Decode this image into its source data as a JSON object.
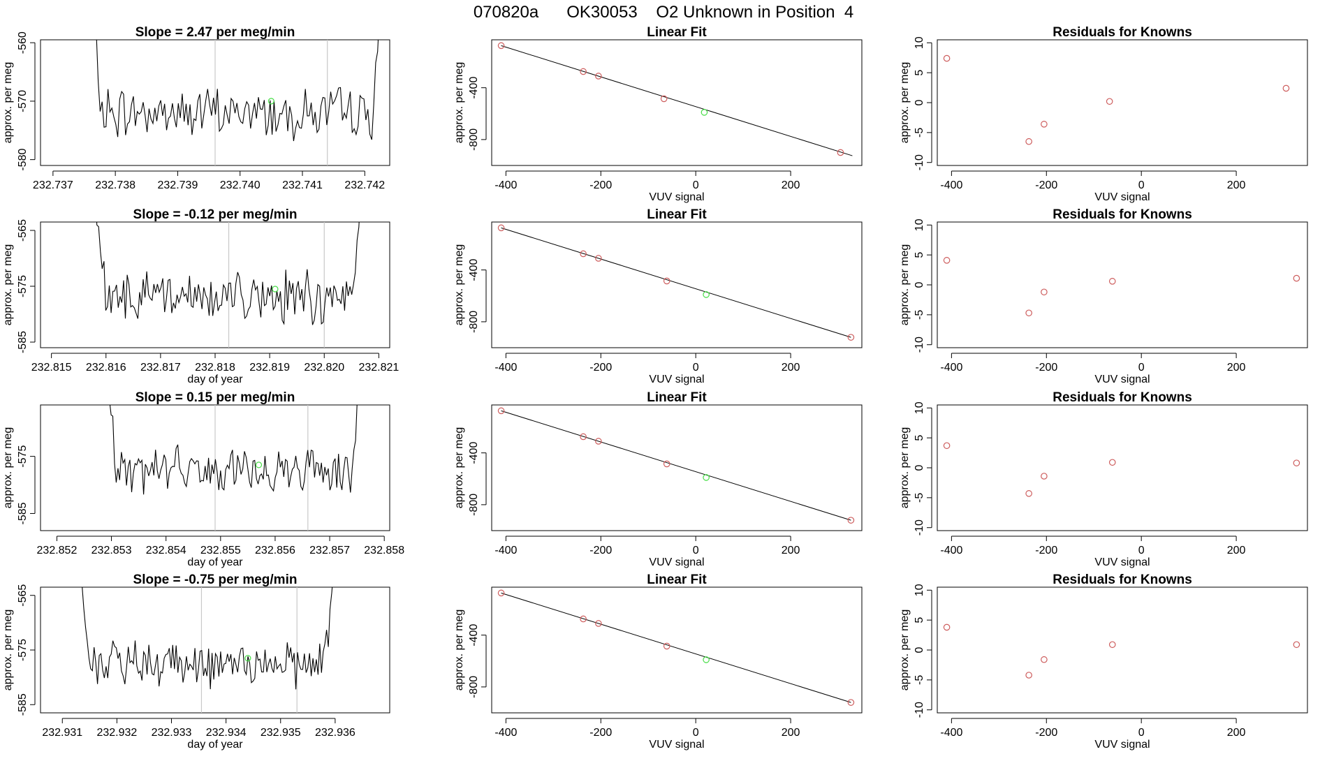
{
  "suptitle": "070820a      OK30053    O2 Unknown in Position  4",
  "colors": {
    "trace": "#000000",
    "known_point": "#cd5c5c",
    "unknown_point": "#44dd44",
    "vline": "#c8c8c8",
    "frame": "#000000"
  },
  "chart_data": [
    {
      "type": "line",
      "title": "Slope =  2.47  per meg/min",
      "xlabel": "",
      "ylabel": "approx. per meg",
      "xlim": [
        232.7368,
        232.7424
      ],
      "ylim": [
        -581,
        -559.5
      ],
      "xticks": [
        232.737,
        232.738,
        232.739,
        232.74,
        232.741,
        232.742
      ],
      "xtick_labels": [
        "232.737",
        "232.738",
        "232.739",
        "232.740",
        "232.741",
        "232.742"
      ],
      "yticks": [
        -560,
        -570,
        -580
      ],
      "ytick_labels": [
        "-560",
        "-570",
        "-580"
      ],
      "vlines": [
        232.7396,
        232.7414
      ],
      "series": [
        {
          "x_start": 232.7376,
          "x_end": 232.7423,
          "center": -572,
          "noise": 3.5
        }
      ],
      "marker": {
        "x": 232.7405,
        "y": -570
      }
    },
    {
      "type": "scatter",
      "title": "Linear Fit",
      "xlabel": "VUV signal",
      "ylabel": "approx. per meg",
      "xlim": [
        -430,
        350
      ],
      "ylim": [
        -1000,
        -30
      ],
      "xticks": [
        -400,
        -200,
        0,
        200
      ],
      "xtick_labels": [
        "-400",
        "-200",
        "0",
        "200"
      ],
      "yticks": [
        -400,
        -800
      ],
      "ytick_labels": [
        "-400",
        "-800"
      ],
      "knowns": {
        "x": [
          -410,
          -237,
          -205,
          -67,
          305
        ],
        "y": [
          -75,
          -275,
          -310,
          -485,
          -900
        ]
      },
      "unknown": {
        "x": 18,
        "y": -590
      },
      "fit_line": {
        "x": [
          -410,
          330
        ],
        "y": [
          -75,
          -925
        ]
      }
    },
    {
      "type": "scatter",
      "title": "Residuals for Knowns",
      "xlabel": "VUV signal",
      "ylabel": "approx. per meg",
      "xlim": [
        -430,
        350
      ],
      "ylim": [
        -10.5,
        10.5
      ],
      "xticks": [
        -400,
        -200,
        0,
        200
      ],
      "xtick_labels": [
        "-400",
        "-200",
        "0",
        "200"
      ],
      "yticks": [
        10,
        5,
        0,
        -5,
        -10
      ],
      "ytick_labels": [
        "10",
        "5",
        "0",
        "-5",
        "-10"
      ],
      "knowns": {
        "x": [
          -410,
          -237,
          -205,
          -67,
          305
        ],
        "y": [
          7.4,
          -6.5,
          -3.6,
          0.2,
          2.4
        ]
      }
    },
    {
      "type": "line",
      "title": "Slope =  -0.12  per meg/min",
      "xlabel": "day of year",
      "ylabel": "approx. per meg",
      "xlim": [
        232.8148,
        232.8212
      ],
      "ylim": [
        -586,
        -563.5
      ],
      "xticks": [
        232.815,
        232.816,
        232.817,
        232.818,
        232.819,
        232.82,
        232.821
      ],
      "xtick_labels": [
        "232.815",
        "232.816",
        "232.817",
        "232.818",
        "232.819",
        "232.820",
        "232.821"
      ],
      "yticks": [
        -565,
        -575,
        -585
      ],
      "ytick_labels": [
        "-565",
        "-575",
        "-585"
      ],
      "vlines": [
        232.81825,
        232.82
      ],
      "series": [
        {
          "x_start": 232.8158,
          "x_end": 232.8207,
          "center": -577,
          "noise": 3.5
        }
      ],
      "marker": {
        "x": 232.8191,
        "y": -575.5
      }
    },
    {
      "type": "scatter",
      "title": "Linear Fit",
      "xlabel": "VUV signal",
      "ylabel": "approx. per meg",
      "xlim": [
        -430,
        350
      ],
      "ylim": [
        -1000,
        -30
      ],
      "xticks": [
        -400,
        -200,
        0,
        200
      ],
      "xtick_labels": [
        "-400",
        "-200",
        "0",
        "200"
      ],
      "yticks": [
        -400,
        -800
      ],
      "ytick_labels": [
        "-400",
        "-800"
      ],
      "knowns": {
        "x": [
          -410,
          -237,
          -205,
          -61,
          327
        ],
        "y": [
          -75,
          -275,
          -310,
          -485,
          -920
        ]
      },
      "unknown": {
        "x": 22,
        "y": -590
      },
      "fit_line": {
        "x": [
          -410,
          327
        ],
        "y": [
          -75,
          -920
        ]
      }
    },
    {
      "type": "scatter",
      "title": "Residuals for Knowns",
      "xlabel": "VUV signal",
      "ylabel": "approx. per meg",
      "xlim": [
        -430,
        350
      ],
      "ylim": [
        -10.5,
        10.5
      ],
      "xticks": [
        -400,
        -200,
        0,
        200
      ],
      "xtick_labels": [
        "-400",
        "-200",
        "0",
        "200"
      ],
      "yticks": [
        10,
        5,
        0,
        -5,
        -10
      ],
      "ytick_labels": [
        "10",
        "5",
        "0",
        "-5",
        "-10"
      ],
      "knowns": {
        "x": [
          -410,
          -237,
          -205,
          -61,
          327
        ],
        "y": [
          4.1,
          -4.7,
          -1.2,
          0.6,
          1.1
        ]
      }
    },
    {
      "type": "line",
      "title": "Slope =  0.15  per meg/min",
      "xlabel": "day of year",
      "ylabel": "approx. per meg",
      "xlim": [
        232.8517,
        232.8581
      ],
      "ylim": [
        -588,
        -566
      ],
      "xticks": [
        232.852,
        232.853,
        232.854,
        232.855,
        232.856,
        232.857,
        232.858
      ],
      "xtick_labels": [
        "232.852",
        "232.853",
        "232.854",
        "232.855",
        "232.856",
        "232.857",
        "232.858"
      ],
      "yticks": [
        -575,
        -585
      ],
      "ytick_labels": [
        "-575",
        "-585"
      ],
      "vlines": [
        232.8549,
        232.8566
      ],
      "series": [
        {
          "x_start": 232.8529,
          "x_end": 232.8576,
          "center": -577.5,
          "noise": 3.2
        }
      ],
      "marker": {
        "x": 232.8557,
        "y": -576.5
      }
    },
    {
      "type": "scatter",
      "title": "Linear Fit",
      "xlabel": "VUV signal",
      "ylabel": "approx. per meg",
      "xlim": [
        -430,
        350
      ],
      "ylim": [
        -1000,
        -30
      ],
      "xticks": [
        -400,
        -200,
        0,
        200
      ],
      "xtick_labels": [
        "-400",
        "-200",
        "0",
        "200"
      ],
      "yticks": [
        -400,
        -800
      ],
      "ytick_labels": [
        "-400",
        "-800"
      ],
      "knowns": {
        "x": [
          -410,
          -237,
          -205,
          -61,
          327
        ],
        "y": [
          -75,
          -275,
          -310,
          -485,
          -920
        ]
      },
      "unknown": {
        "x": 22,
        "y": -590
      },
      "fit_line": {
        "x": [
          -410,
          327
        ],
        "y": [
          -75,
          -920
        ]
      }
    },
    {
      "type": "scatter",
      "title": "Residuals for Knowns",
      "xlabel": "VUV signal",
      "ylabel": "approx. per meg",
      "xlim": [
        -430,
        350
      ],
      "ylim": [
        -10.5,
        10.5
      ],
      "xticks": [
        -400,
        -200,
        0,
        200
      ],
      "xtick_labels": [
        "-400",
        "-200",
        "0",
        "200"
      ],
      "yticks": [
        10,
        5,
        0,
        -5,
        -10
      ],
      "ytick_labels": [
        "10",
        "5",
        "0",
        "-5",
        "-10"
      ],
      "knowns": {
        "x": [
          -410,
          -237,
          -205,
          -61,
          327
        ],
        "y": [
          3.7,
          -4.3,
          -1.4,
          0.9,
          0.8
        ]
      }
    },
    {
      "type": "line",
      "title": "Slope =  -0.75  per meg/min",
      "xlabel": "day of year",
      "ylabel": "approx. per meg",
      "xlim": [
        232.9306,
        232.937
      ],
      "ylim": [
        -586.5,
        -563.5
      ],
      "xticks": [
        232.931,
        232.932,
        232.933,
        232.934,
        232.935,
        232.936
      ],
      "xtick_labels": [
        "232.931",
        "232.932",
        "232.933",
        "232.934",
        "232.935",
        "232.936"
      ],
      "yticks": [
        -565,
        -575,
        -585
      ],
      "ytick_labels": [
        "-565",
        "-575",
        "-585"
      ],
      "vlines": [
        232.93355,
        232.9353
      ],
      "series": [
        {
          "x_start": 232.9313,
          "x_end": 232.936,
          "center": -578,
          "noise": 3.3
        }
      ],
      "marker": {
        "x": 232.9344,
        "y": -576.5
      }
    },
    {
      "type": "scatter",
      "title": "Linear Fit",
      "xlabel": "VUV signal",
      "ylabel": "approx. per meg",
      "xlim": [
        -430,
        350
      ],
      "ylim": [
        -1000,
        -30
      ],
      "xticks": [
        -400,
        -200,
        0,
        200
      ],
      "xtick_labels": [
        "-400",
        "-200",
        "0",
        "200"
      ],
      "yticks": [
        -400,
        -800
      ],
      "ytick_labels": [
        "-400",
        "-800"
      ],
      "knowns": {
        "x": [
          -410,
          -237,
          -205,
          -61,
          327
        ],
        "y": [
          -75,
          -275,
          -310,
          -485,
          -920
        ]
      },
      "unknown": {
        "x": 22,
        "y": -590
      },
      "fit_line": {
        "x": [
          -410,
          327
        ],
        "y": [
          -75,
          -920
        ]
      }
    },
    {
      "type": "scatter",
      "title": "Residuals for Knowns",
      "xlabel": "VUV signal",
      "ylabel": "approx. per meg",
      "xlim": [
        -430,
        350
      ],
      "ylim": [
        -10.5,
        10.5
      ],
      "xticks": [
        -400,
        -200,
        0,
        200
      ],
      "xtick_labels": [
        "-400",
        "-200",
        "0",
        "200"
      ],
      "yticks": [
        10,
        5,
        0,
        -5,
        -10
      ],
      "ytick_labels": [
        "10",
        "5",
        "0",
        "-5",
        "-10"
      ],
      "knowns": {
        "x": [
          -410,
          -237,
          -205,
          -61,
          327
        ],
        "y": [
          3.8,
          -4.2,
          -1.6,
          0.9,
          0.9
        ]
      }
    }
  ]
}
